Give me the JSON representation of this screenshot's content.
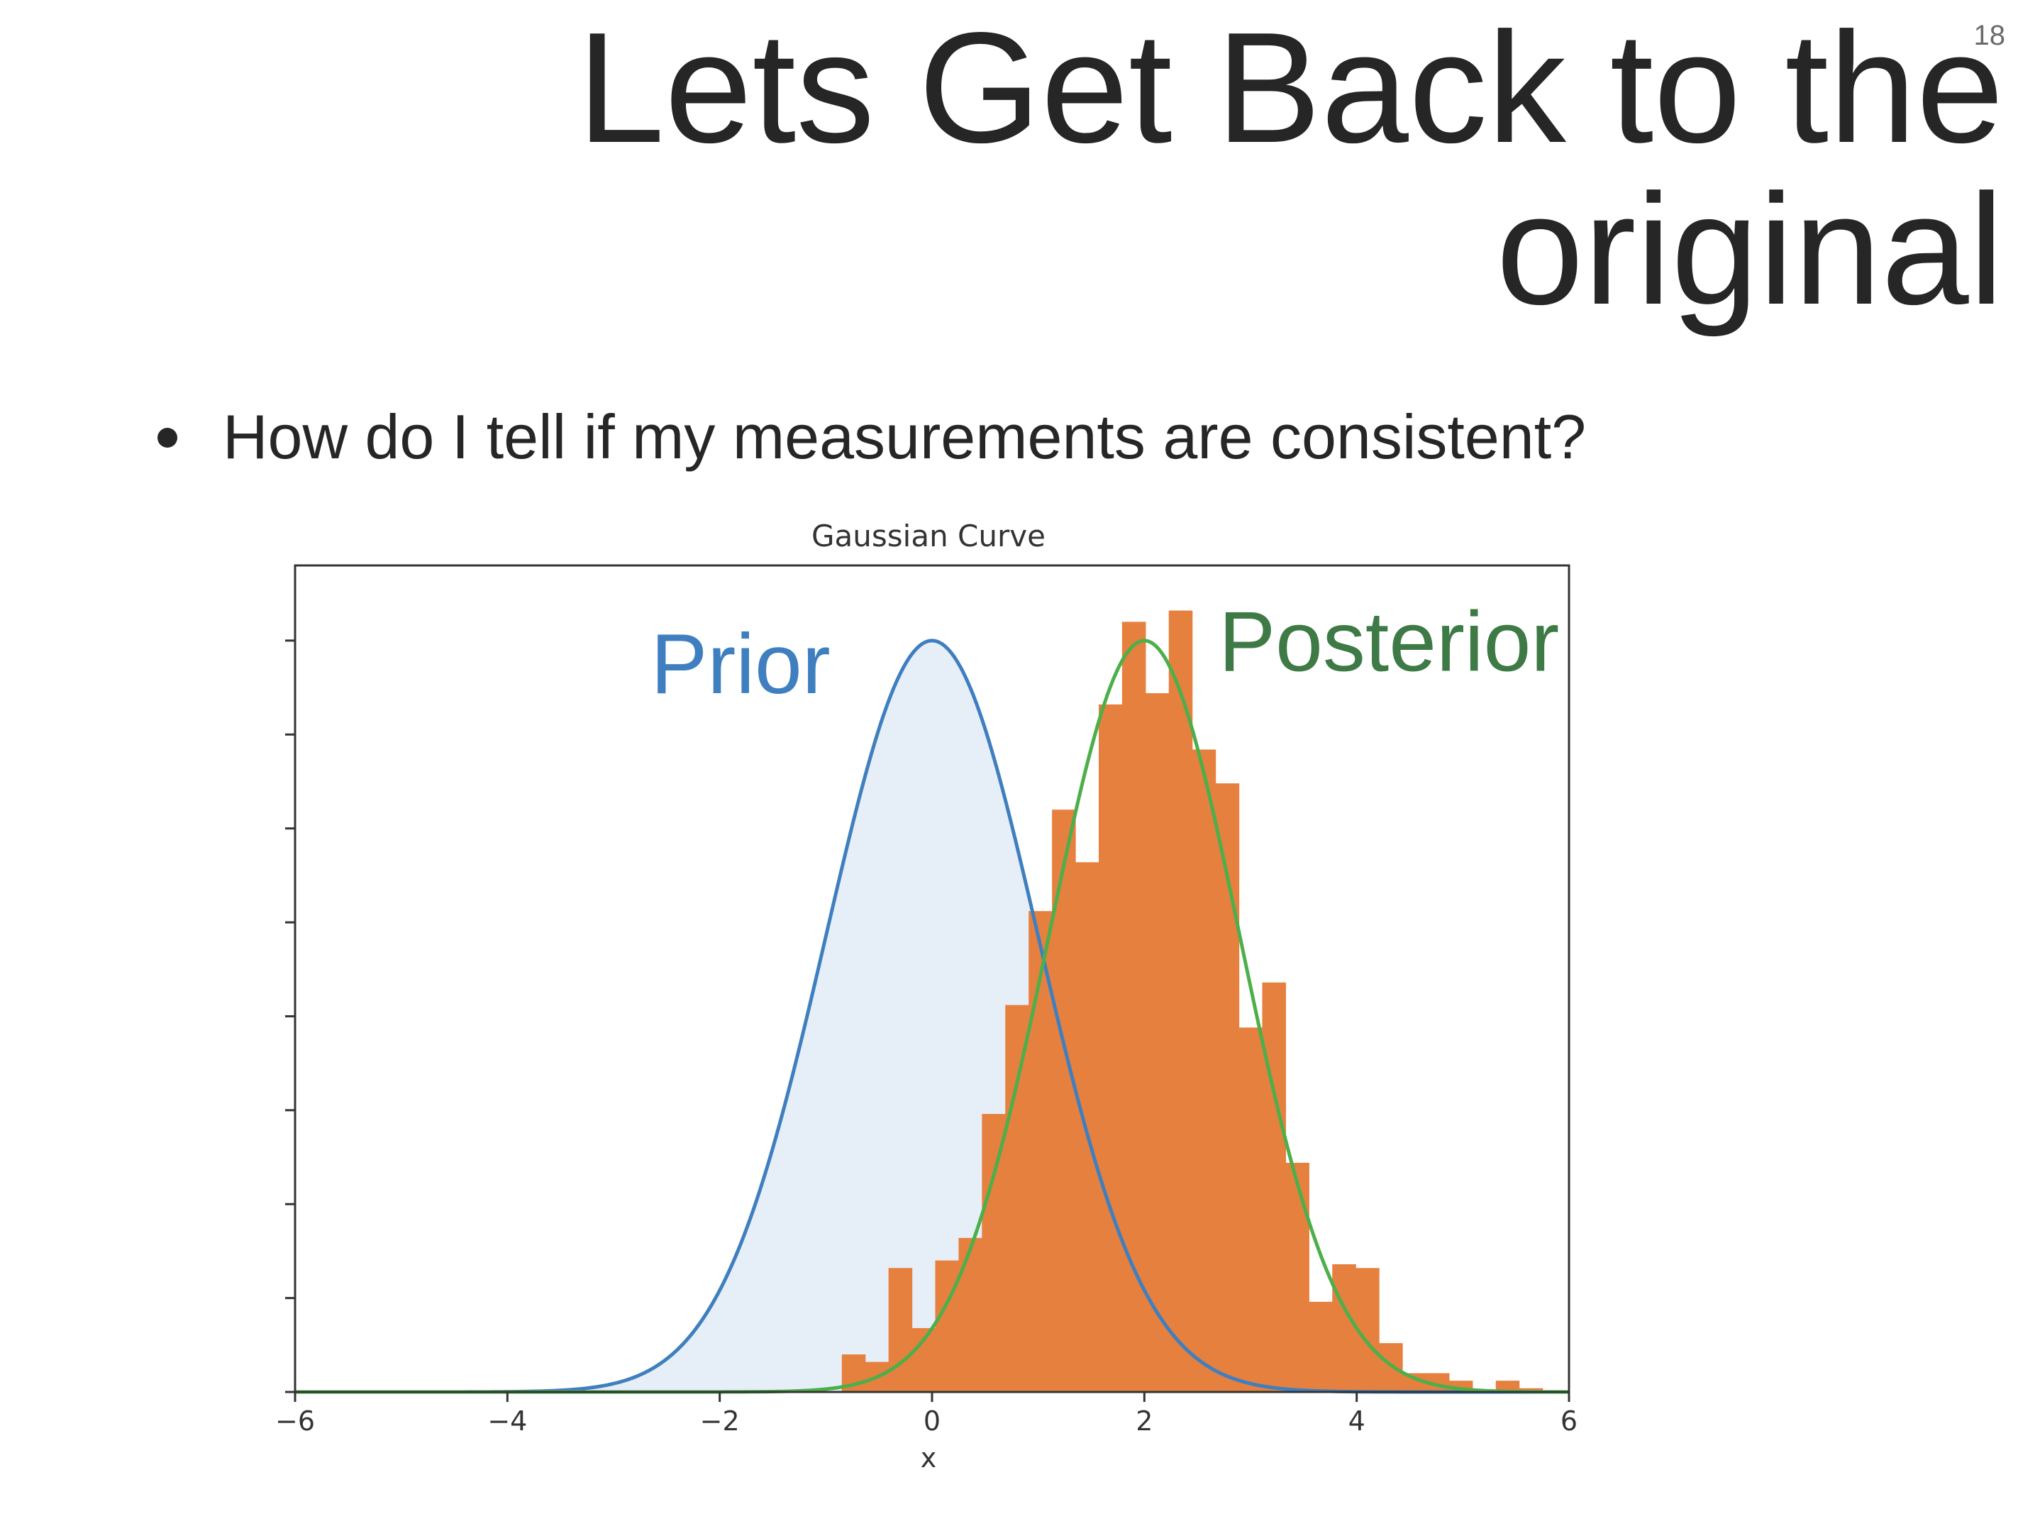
{
  "slide": {
    "number": "18",
    "title_lines": [
      "Lets Get Back to the",
      "original"
    ],
    "bullet": "How do I tell if my measurements are consistent?"
  },
  "colors": {
    "prior": "#3f7fbf",
    "prior_fill": "#e6eff8",
    "posterior": "#4daf4a",
    "posterior_label": "#3e7a45",
    "histogram": "#e6803f",
    "axis": "#333333"
  },
  "chart_data": {
    "type": "histogram",
    "title": "Gaussian Curve",
    "xlabel": "x",
    "ylabel": "",
    "xlim": [
      -6,
      6
    ],
    "ylim": [
      0,
      1.1
    ],
    "xticks": [
      -6,
      -4,
      -2,
      0,
      2,
      4,
      6
    ],
    "xtick_labels": [
      "−6",
      "−4",
      "−2",
      "0",
      "2",
      "4",
      "6"
    ],
    "yticks": [
      0,
      0.125,
      0.25,
      0.375,
      0.5,
      0.625,
      0.75,
      0.875,
      1.0
    ],
    "yticks_labeled": false,
    "grid": false,
    "annotations": [
      {
        "text": "Prior",
        "x": -2.65,
        "y": 0.93,
        "series": "Prior"
      },
      {
        "text": "Posterior",
        "x": 2.7,
        "y": 0.96,
        "series": "Posterior"
      }
    ],
    "series": [
      {
        "name": "Prior",
        "kind": "curve",
        "mean": 0,
        "std": 1,
        "peak": 1.0,
        "filled": true
      },
      {
        "name": "Posterior",
        "kind": "curve",
        "mean": 2,
        "std": 0.9,
        "peak": 1.0,
        "filled": false
      },
      {
        "name": "histogram",
        "kind": "bars",
        "bin_edges": [
          -0.85,
          -0.63,
          -0.41,
          -0.19,
          0.03,
          0.25,
          0.47,
          0.69,
          0.91,
          1.13,
          1.35,
          1.57,
          1.79,
          2.01,
          2.23,
          2.45,
          2.67,
          2.89,
          3.11,
          3.33,
          3.55,
          3.77,
          3.99,
          4.21,
          4.43,
          4.65,
          4.87,
          5.09,
          5.31,
          5.53,
          5.75
        ],
        "heights": [
          0.05,
          0.04,
          0.165,
          0.085,
          0.175,
          0.205,
          0.37,
          0.515,
          0.64,
          0.775,
          0.705,
          0.915,
          1.025,
          0.93,
          1.04,
          0.855,
          0.81,
          0.485,
          0.545,
          0.305,
          0.12,
          0.17,
          0.165,
          0.065,
          0.025,
          0.025,
          0.015,
          0.0,
          0.015,
          0.005
        ]
      }
    ]
  }
}
